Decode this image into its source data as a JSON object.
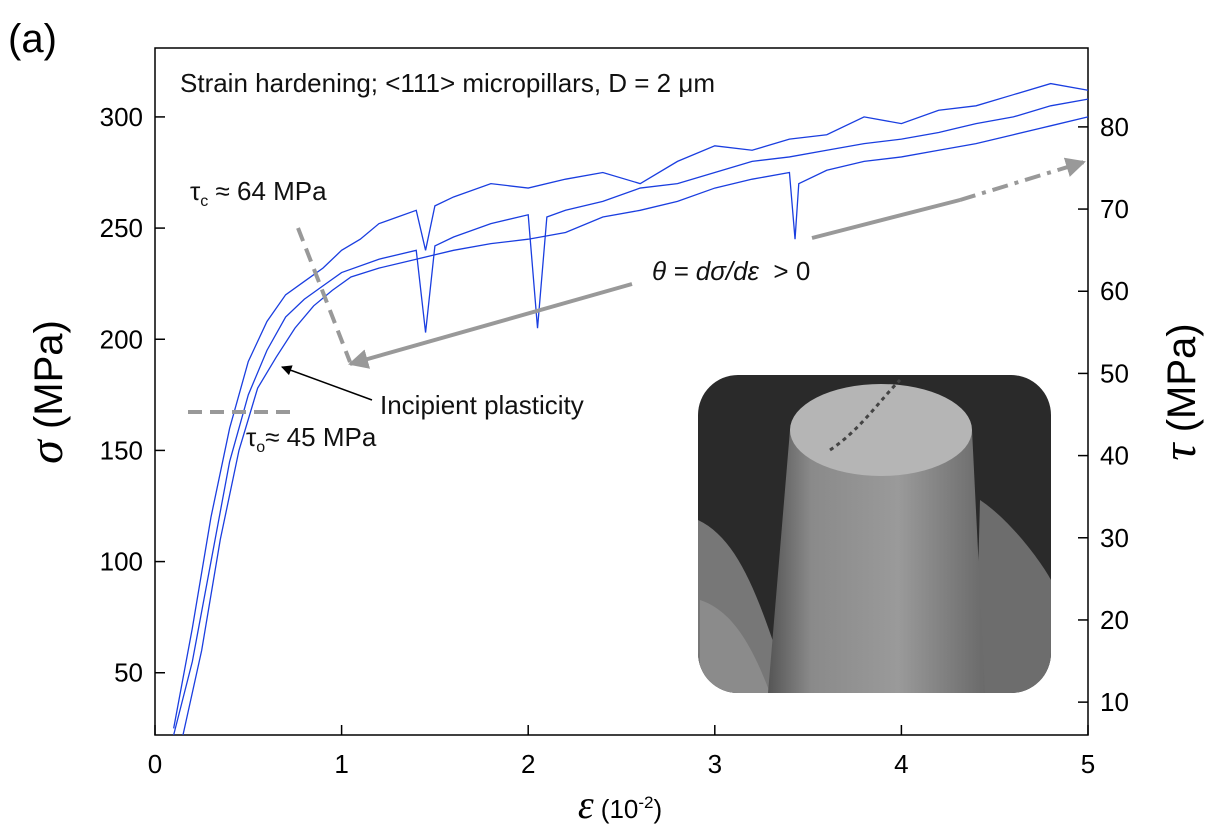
{
  "chart_data": {
    "type": "line",
    "panel_label": "(a)",
    "title": "Strain hardening; <111> micropillars, D = 2 μm",
    "x_label": [
      "ε",
      " (10",
      "-2",
      ")"
    ],
    "y_label": [
      "σ",
      " (MPa)"
    ],
    "y2_label": [
      "τ",
      " (MPa)"
    ],
    "annotations": {
      "tau_c": [
        "τ",
        "c",
        " ≈ 64 MPa"
      ],
      "tau_o": [
        "τ",
        "o",
        "≈ 45 MPa"
      ],
      "theta": [
        "θ = dσ/dε",
        "  > 0"
      ],
      "incipient": "Incipient plasticity"
    },
    "xlim": [
      0,
      5
    ],
    "xticks": [
      0,
      1,
      2,
      3,
      4,
      5
    ],
    "ylim": [
      22,
      331
    ],
    "yticks": [
      50,
      100,
      150,
      200,
      250,
      300
    ],
    "y2lim": [
      6,
      89.6
    ],
    "y2ticks": [
      10,
      20,
      30,
      40,
      50,
      60,
      70,
      80
    ],
    "series": [
      {
        "color": "#1a3ee0",
        "x": [
          0.1,
          0.2,
          0.3,
          0.4,
          0.5,
          0.6,
          0.7,
          0.8,
          0.9,
          1.0,
          1.1,
          1.2,
          1.3,
          1.4,
          1.45,
          1.5,
          1.6,
          1.8,
          2.0,
          2.2,
          2.4,
          2.6,
          2.8,
          3.0,
          3.2,
          3.4,
          3.6,
          3.8,
          4.0,
          4.2,
          4.4,
          4.6,
          4.8,
          5.0
        ],
        "values": [
          25,
          70,
          120,
          160,
          190,
          208,
          220,
          226,
          232,
          240,
          245,
          252,
          255,
          258,
          240,
          260,
          264,
          270,
          268,
          272,
          275,
          270,
          280,
          287,
          285,
          290,
          292,
          300,
          297,
          303,
          305,
          310,
          315,
          312
        ]
      },
      {
        "color": "#1a3ee0",
        "x": [
          0.1,
          0.2,
          0.3,
          0.4,
          0.5,
          0.6,
          0.7,
          0.8,
          0.9,
          1.0,
          1.2,
          1.4,
          1.45,
          1.5,
          1.6,
          1.8,
          2.0,
          2.05,
          2.1,
          2.2,
          2.4,
          2.6,
          2.8,
          3.0,
          3.2,
          3.4,
          3.6,
          3.8,
          4.0,
          4.2,
          4.4,
          4.6,
          4.8,
          5.0
        ],
        "values": [
          22,
          55,
          100,
          145,
          175,
          195,
          210,
          218,
          224,
          230,
          236,
          240,
          203,
          242,
          246,
          252,
          256,
          205,
          255,
          258,
          262,
          268,
          270,
          275,
          280,
          282,
          285,
          288,
          290,
          293,
          297,
          300,
          305,
          308
        ]
      },
      {
        "color": "#1a3ee0",
        "x": [
          0.15,
          0.25,
          0.35,
          0.45,
          0.55,
          0.65,
          0.75,
          0.85,
          0.95,
          1.05,
          1.2,
          1.4,
          1.6,
          1.8,
          2.0,
          2.2,
          2.4,
          2.6,
          2.8,
          3.0,
          3.2,
          3.4,
          3.43,
          3.45,
          3.6,
          3.8,
          4.0,
          4.2,
          4.4,
          4.6,
          4.8,
          5.0
        ],
        "values": [
          22,
          60,
          110,
          150,
          178,
          192,
          205,
          215,
          222,
          228,
          232,
          236,
          240,
          243,
          245,
          248,
          255,
          258,
          262,
          268,
          272,
          275,
          245,
          270,
          276,
          280,
          282,
          285,
          288,
          292,
          296,
          300
        ]
      }
    ]
  }
}
